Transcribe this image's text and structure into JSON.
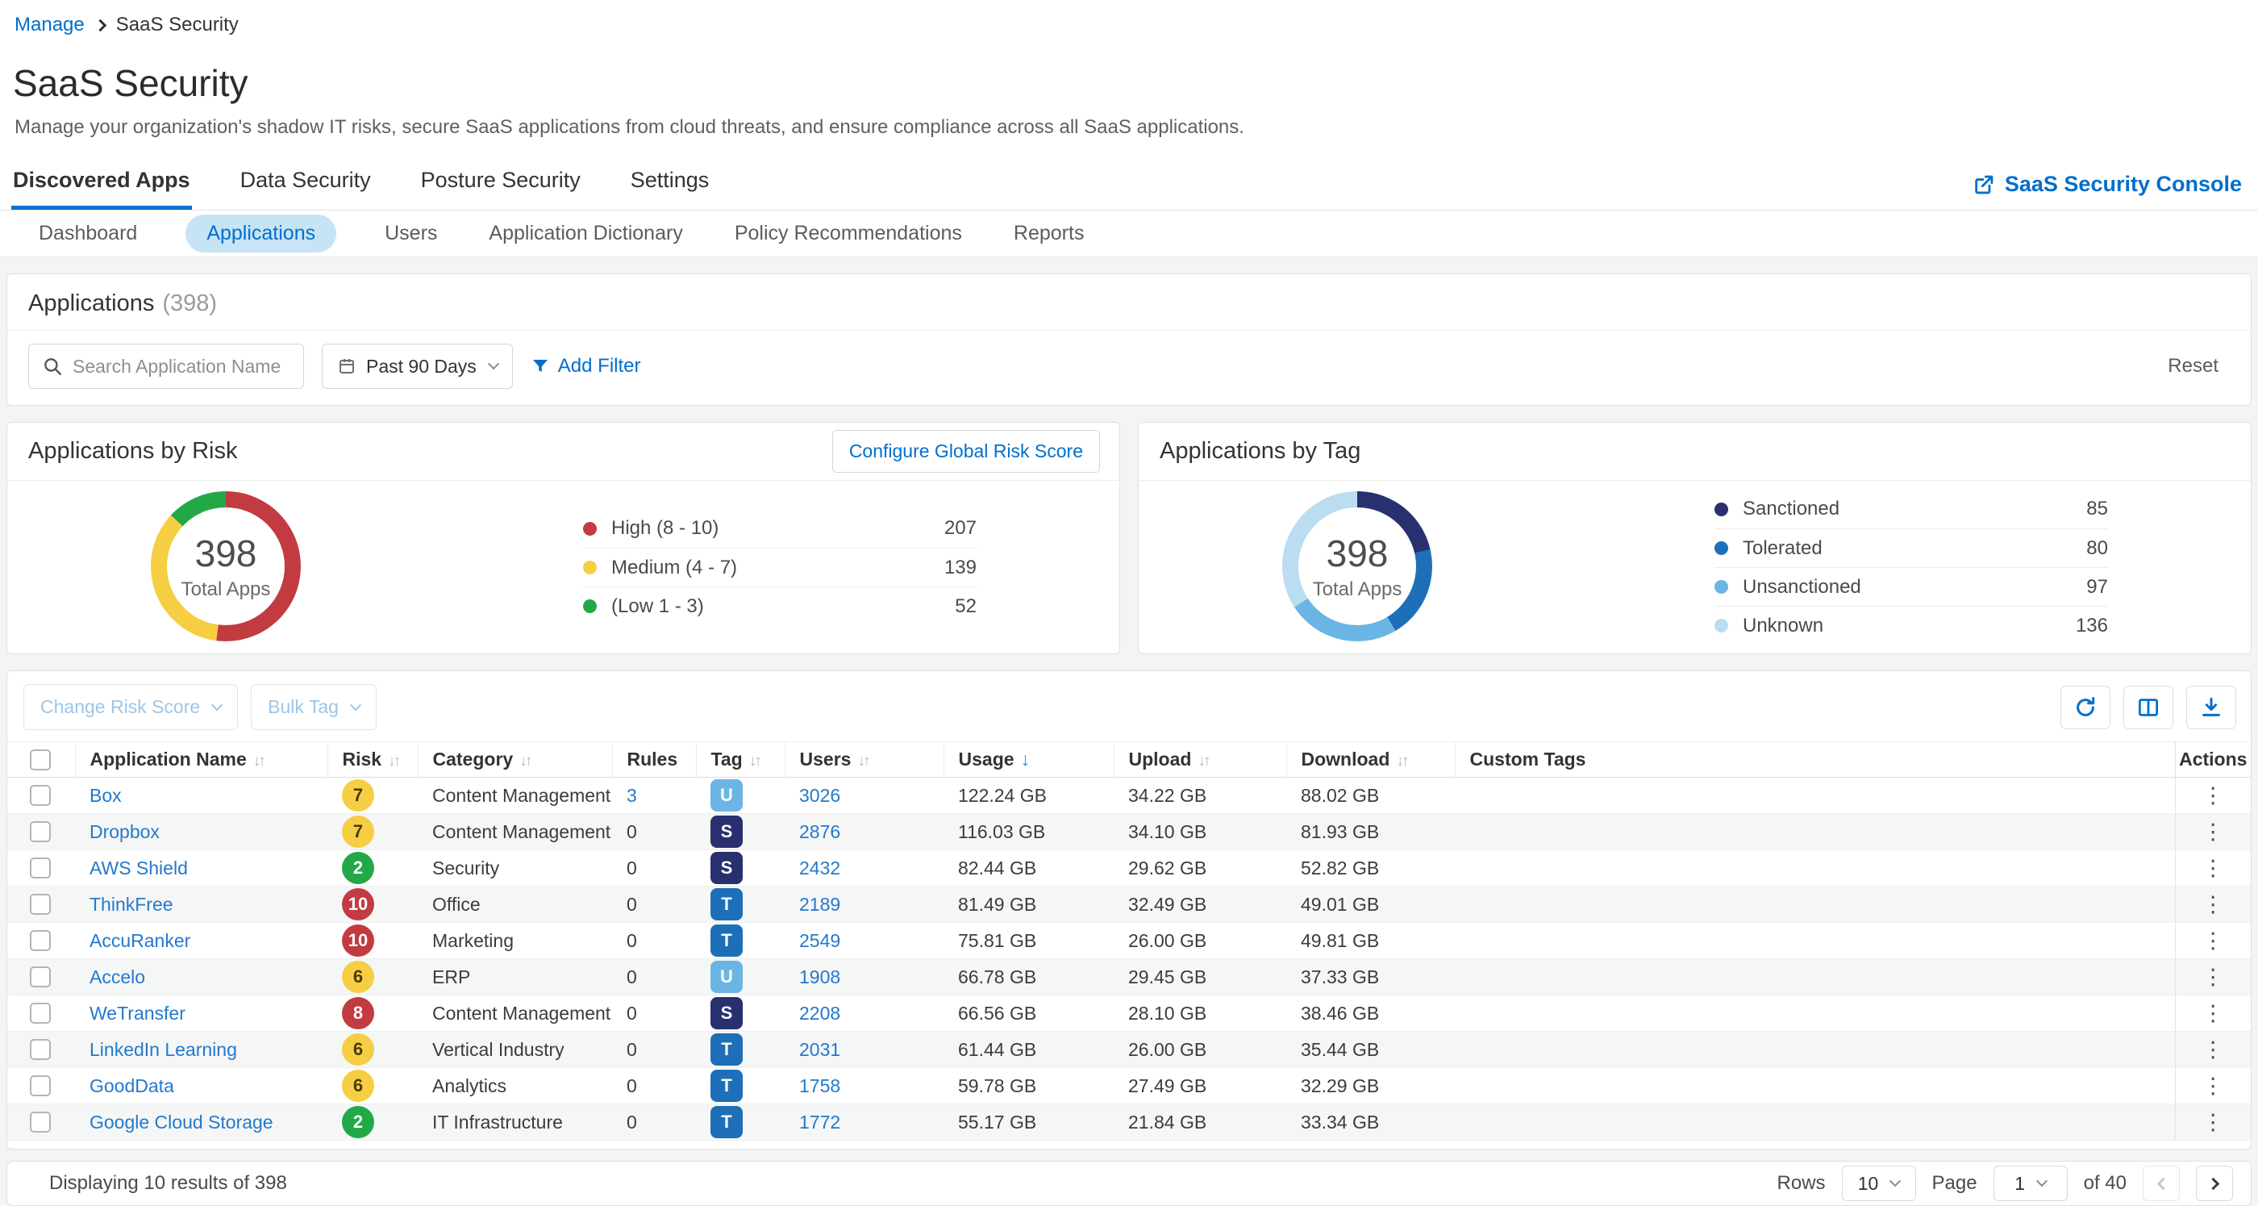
{
  "colors": {
    "accent_blue": "#006fcc",
    "risk_high": "#c23b41",
    "risk_medium": "#f6ce44",
    "risk_low": "#23a847",
    "tag_sanctioned": "#28306f",
    "tag_tolerated": "#1d70b7",
    "tag_unsanctioned": "#6ab5e3",
    "tag_unknown": "#bcdcf2"
  },
  "breadcrumb": {
    "parent": "Manage",
    "current": "SaaS Security"
  },
  "header": {
    "title": "SaaS Security",
    "description": "Manage your organization's shadow IT risks, secure SaaS applications from cloud threats, and ensure compliance across all SaaS applications."
  },
  "tabs": {
    "main": [
      {
        "label": "Discovered Apps",
        "active": true
      },
      {
        "label": "Data Security",
        "active": false
      },
      {
        "label": "Posture Security",
        "active": false
      },
      {
        "label": "Settings",
        "active": false
      }
    ],
    "console_link": "SaaS Security Console",
    "sub": [
      {
        "label": "Dashboard",
        "active": false
      },
      {
        "label": "Applications",
        "active": true
      },
      {
        "label": "Users",
        "active": false
      },
      {
        "label": "Application Dictionary",
        "active": false
      },
      {
        "label": "Policy Recommendations",
        "active": false
      },
      {
        "label": "Reports",
        "active": false
      }
    ]
  },
  "filters": {
    "panel_title": "Applications",
    "panel_count": "(398)",
    "search_placeholder": "Search Application Name",
    "date_range": "Past 90 Days",
    "add_filter": "Add Filter",
    "reset": "Reset"
  },
  "risk_panel": {
    "title": "Applications by Risk",
    "config_button": "Configure Global Risk Score",
    "center_value": "398",
    "center_label": "Total Apps",
    "chart_data": {
      "type": "pie",
      "title": "Applications by Risk",
      "total": 398,
      "segments": [
        {
          "label": "High (8 - 10)",
          "value": 207,
          "color": "#c23b41"
        },
        {
          "label": "Medium (4 - 7)",
          "value": 139,
          "color": "#f6ce44"
        },
        {
          "label": "(Low 1 - 3)",
          "value": 52,
          "color": "#23a847"
        }
      ]
    }
  },
  "tag_panel": {
    "title": "Applications by Tag",
    "center_value": "398",
    "center_label": "Total Apps",
    "chart_data": {
      "type": "pie",
      "title": "Applications by Tag",
      "total": 398,
      "segments": [
        {
          "label": "Sanctioned",
          "value": 85,
          "color": "#28306f"
        },
        {
          "label": "Tolerated",
          "value": 80,
          "color": "#1d70b7"
        },
        {
          "label": "Unsanctioned",
          "value": 97,
          "color": "#6ab5e3"
        },
        {
          "label": "Unknown",
          "value": 136,
          "color": "#bcdcf2"
        }
      ]
    }
  },
  "toolbar": {
    "change_risk_score": "Change Risk Score",
    "bulk_tag": "Bulk Tag",
    "icon_buttons": [
      "refresh-icon",
      "columns-icon",
      "download-icon"
    ]
  },
  "table": {
    "columns": [
      {
        "label": "",
        "type": "checkbox"
      },
      {
        "label": "Application Name",
        "sortable": true
      },
      {
        "label": "Risk",
        "sortable": true
      },
      {
        "label": "Category",
        "sortable": true
      },
      {
        "label": "Rules",
        "sortable": false
      },
      {
        "label": "Tag",
        "sortable": true
      },
      {
        "label": "Users",
        "sortable": true
      },
      {
        "label": "Usage",
        "sortable": true,
        "sorted": "desc"
      },
      {
        "label": "Upload",
        "sortable": true
      },
      {
        "label": "Download",
        "sortable": true
      },
      {
        "label": "Custom Tags",
        "sortable": false
      },
      {
        "label": "Actions",
        "sortable": false,
        "type": "actions"
      }
    ],
    "rows": [
      {
        "name": "Box",
        "risk": "7",
        "risk_level": "medium",
        "category": "Content Management",
        "rules": "3",
        "rules_link": true,
        "tag": "U",
        "tag_type": "unsanctioned",
        "users": "3026",
        "usage": "122.24 GB",
        "upload": "34.22 GB",
        "download": "88.02 GB",
        "custom_tags": ""
      },
      {
        "name": "Dropbox",
        "risk": "7",
        "risk_level": "medium",
        "category": "Content Management",
        "rules": "0",
        "rules_link": false,
        "tag": "S",
        "tag_type": "sanctioned",
        "users": "2876",
        "usage": "116.03 GB",
        "upload": "34.10 GB",
        "download": "81.93 GB",
        "custom_tags": ""
      },
      {
        "name": "AWS Shield",
        "risk": "2",
        "risk_level": "low",
        "category": "Security",
        "rules": "0",
        "rules_link": false,
        "tag": "S",
        "tag_type": "sanctioned",
        "users": "2432",
        "usage": "82.44 GB",
        "upload": "29.62 GB",
        "download": "52.82 GB",
        "custom_tags": ""
      },
      {
        "name": "ThinkFree",
        "risk": "10",
        "risk_level": "high",
        "category": "Office",
        "rules": "0",
        "rules_link": false,
        "tag": "T",
        "tag_type": "tolerated",
        "users": "2189",
        "usage": "81.49 GB",
        "upload": "32.49 GB",
        "download": "49.01 GB",
        "custom_tags": ""
      },
      {
        "name": "AccuRanker",
        "risk": "10",
        "risk_level": "high",
        "category": "Marketing",
        "rules": "0",
        "rules_link": false,
        "tag": "T",
        "tag_type": "tolerated",
        "users": "2549",
        "usage": "75.81 GB",
        "upload": "26.00 GB",
        "download": "49.81 GB",
        "custom_tags": ""
      },
      {
        "name": "Accelo",
        "risk": "6",
        "risk_level": "medium",
        "category": "ERP",
        "rules": "0",
        "rules_link": false,
        "tag": "U",
        "tag_type": "unsanctioned",
        "users": "1908",
        "usage": "66.78 GB",
        "upload": "29.45 GB",
        "download": "37.33 GB",
        "custom_tags": ""
      },
      {
        "name": "WeTransfer",
        "risk": "8",
        "risk_level": "high",
        "category": "Content Management",
        "rules": "0",
        "rules_link": false,
        "tag": "S",
        "tag_type": "sanctioned",
        "users": "2208",
        "usage": "66.56 GB",
        "upload": "28.10 GB",
        "download": "38.46 GB",
        "custom_tags": ""
      },
      {
        "name": "LinkedIn Learning",
        "risk": "6",
        "risk_level": "medium",
        "category": "Vertical Industry",
        "rules": "0",
        "rules_link": false,
        "tag": "T",
        "tag_type": "tolerated",
        "users": "2031",
        "usage": "61.44 GB",
        "upload": "26.00 GB",
        "download": "35.44 GB",
        "custom_tags": ""
      },
      {
        "name": "GoodData",
        "risk": "6",
        "risk_level": "medium",
        "category": "Analytics",
        "rules": "0",
        "rules_link": false,
        "tag": "T",
        "tag_type": "tolerated",
        "users": "1758",
        "usage": "59.78 GB",
        "upload": "27.49 GB",
        "download": "32.29 GB",
        "custom_tags": ""
      },
      {
        "name": "Google Cloud Storage",
        "risk": "2",
        "risk_level": "low",
        "category": "IT Infrastructure",
        "rules": "0",
        "rules_link": false,
        "tag": "T",
        "tag_type": "tolerated",
        "users": "1772",
        "usage": "55.17 GB",
        "upload": "21.84 GB",
        "download": "33.34 GB",
        "custom_tags": ""
      }
    ]
  },
  "footer": {
    "summary": "Displaying 10 results of 398",
    "rows_label": "Rows",
    "rows_value": "10",
    "page_label": "Page",
    "page_value": "1",
    "of_label": "of 40"
  }
}
